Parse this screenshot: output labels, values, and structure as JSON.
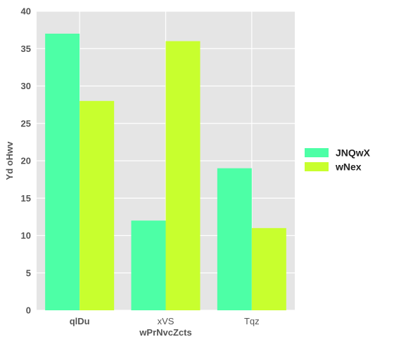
{
  "chart_data": {
    "type": "bar",
    "categories": [
      "qlDu",
      "xVS",
      "Tqz"
    ],
    "series": [
      {
        "name": "JNQwX",
        "color": "#4dffa6",
        "values": [
          37,
          12,
          19
        ]
      },
      {
        "name": "wNex",
        "color": "#c8ff2e",
        "values": [
          28,
          36,
          11
        ]
      }
    ],
    "xlabel": "wPrNvcZcts",
    "ylabel": "Yd oHwv",
    "ylim": [
      0,
      40
    ],
    "yticks": [
      0,
      5,
      10,
      15,
      20,
      25,
      30,
      35,
      40
    ],
    "grid": true,
    "legend_position": "right",
    "plot_background": "#e5e5e5"
  }
}
